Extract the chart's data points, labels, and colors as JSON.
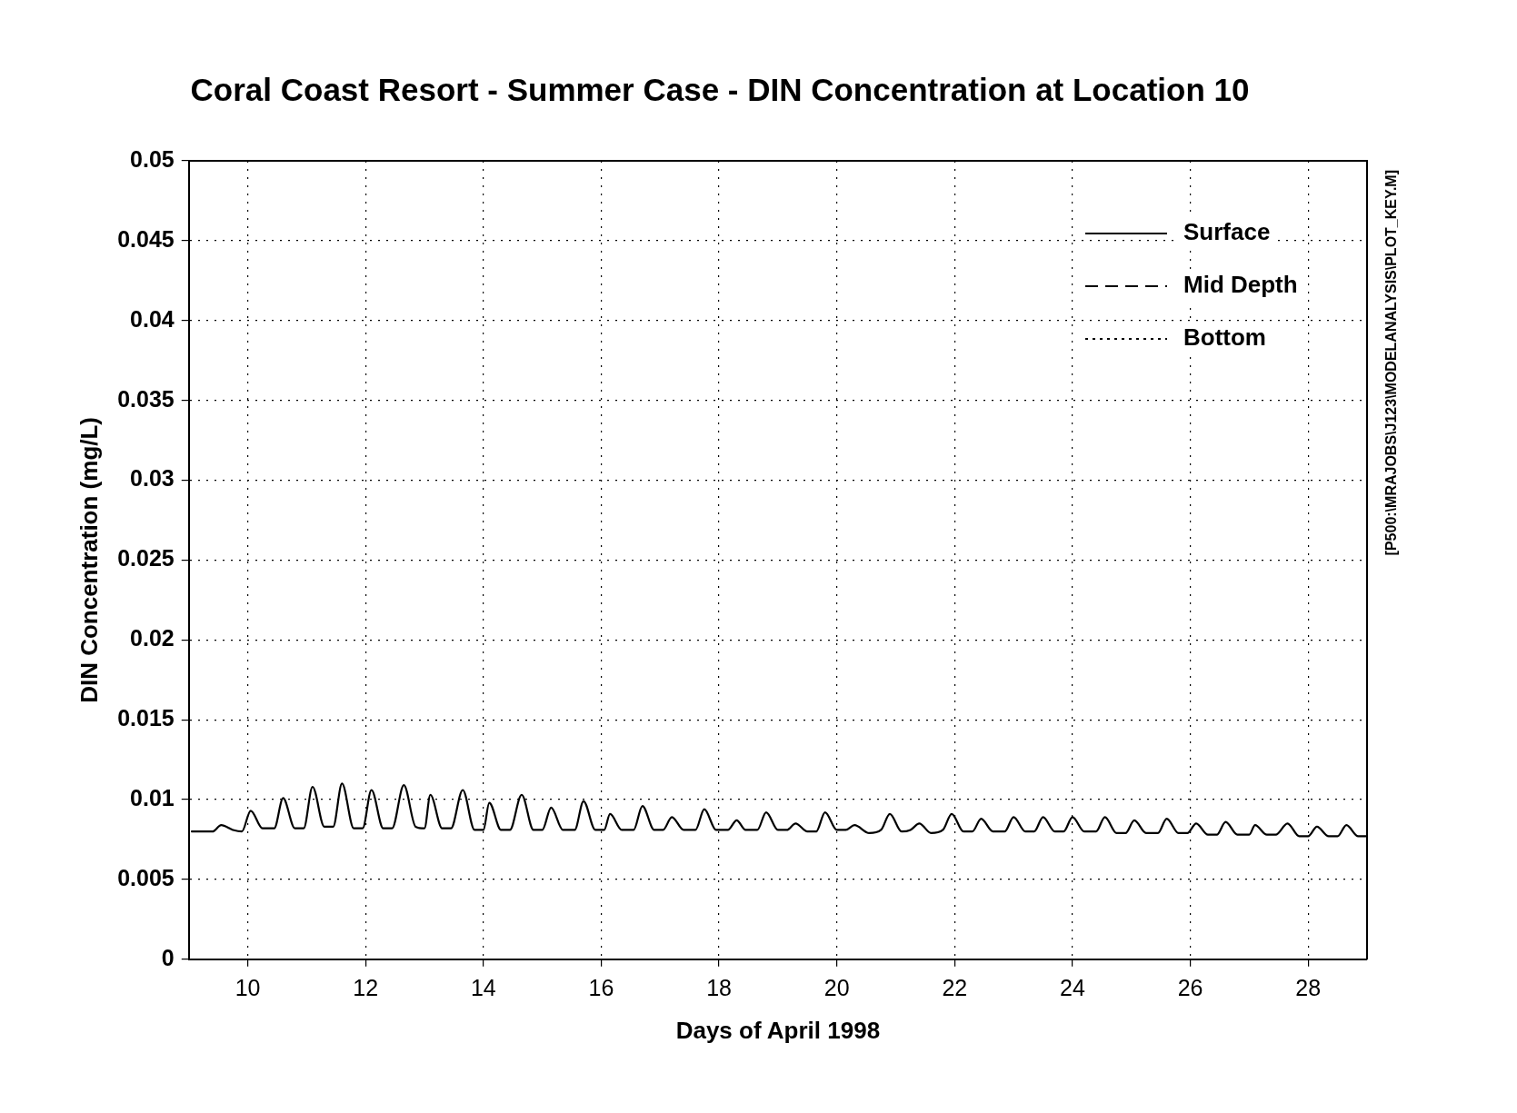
{
  "chart_data": {
    "type": "line",
    "title": "Coral Coast Resort - Summer Case - DIN Concentration at Location 10",
    "xlabel": "Days of April 1998",
    "ylabel": "DIN Concentration (mg/L)",
    "annotations": [
      "[P500:\\MRAJOBS\\J123\\MODELANALYSIS\\PLOT_KEY.M]"
    ],
    "x": [
      9.05,
      9.4,
      9.55,
      9.75,
      9.9,
      10.05,
      10.25,
      10.45,
      10.6,
      10.8,
      10.95,
      11.1,
      11.3,
      11.45,
      11.6,
      11.8,
      11.95,
      12.1,
      12.3,
      12.45,
      12.65,
      12.85,
      13.0,
      13.1,
      13.3,
      13.45,
      13.65,
      13.85,
      14.0,
      14.1,
      14.3,
      14.45,
      14.65,
      14.85,
      15.0,
      15.15,
      15.35,
      15.55,
      15.7,
      15.9,
      16.05,
      16.15,
      16.35,
      16.55,
      16.7,
      16.9,
      17.05,
      17.2,
      17.4,
      17.6,
      17.75,
      17.95,
      18.15,
      18.3,
      18.45,
      18.65,
      18.8,
      19.0,
      19.15,
      19.3,
      19.5,
      19.65,
      19.8,
      20.0,
      20.15,
      20.3,
      20.55,
      20.75,
      20.9,
      21.1,
      21.25,
      21.4,
      21.6,
      21.8,
      21.95,
      22.15,
      22.3,
      22.45,
      22.65,
      22.85,
      23.0,
      23.2,
      23.35,
      23.5,
      23.7,
      23.85,
      24.0,
      24.2,
      24.4,
      24.55,
      24.75,
      24.9,
      25.05,
      25.25,
      25.45,
      25.6,
      25.8,
      25.95,
      26.1,
      26.3,
      26.45,
      26.6,
      26.8,
      27.0,
      27.1,
      27.3,
      27.45,
      27.65,
      27.85,
      28.0,
      28.15,
      28.35,
      28.5,
      28.65,
      28.85,
      29.0
    ],
    "series": [
      {
        "name": "Surface",
        "color": "#000000",
        "line_style": "solid",
        "values": [
          0.008,
          0.008,
          0.0084,
          0.0081,
          0.008,
          0.0093,
          0.0082,
          0.0082,
          0.0101,
          0.0082,
          0.0082,
          0.0108,
          0.0083,
          0.0083,
          0.011,
          0.0082,
          0.0082,
          0.0106,
          0.0082,
          0.0082,
          0.0109,
          0.0083,
          0.0082,
          0.0103,
          0.0082,
          0.0082,
          0.0106,
          0.0081,
          0.0081,
          0.0098,
          0.0081,
          0.0081,
          0.0103,
          0.0081,
          0.0081,
          0.0095,
          0.0081,
          0.0081,
          0.0099,
          0.0081,
          0.0081,
          0.0091,
          0.0081,
          0.0081,
          0.0096,
          0.0081,
          0.0081,
          0.0089,
          0.0081,
          0.0081,
          0.0094,
          0.0081,
          0.0081,
          0.0087,
          0.0081,
          0.0081,
          0.0092,
          0.0081,
          0.0081,
          0.0085,
          0.008,
          0.008,
          0.0092,
          0.0081,
          0.0081,
          0.0084,
          0.0079,
          0.0081,
          0.0091,
          0.008,
          0.0081,
          0.0085,
          0.0079,
          0.0081,
          0.0091,
          0.008,
          0.008,
          0.0088,
          0.008,
          0.008,
          0.0089,
          0.008,
          0.008,
          0.0089,
          0.008,
          0.008,
          0.0089,
          0.008,
          0.008,
          0.0089,
          0.0079,
          0.0079,
          0.0087,
          0.0079,
          0.0079,
          0.0088,
          0.0079,
          0.0079,
          0.0085,
          0.0078,
          0.0078,
          0.0086,
          0.0078,
          0.0078,
          0.0084,
          0.0078,
          0.0078,
          0.0085,
          0.0077,
          0.0077,
          0.0083,
          0.0077,
          0.0077,
          0.0084,
          0.0077,
          0.0077
        ]
      },
      {
        "name": "Mid Depth",
        "color": "#000000",
        "line_style": "dashed",
        "values": [
          null,
          null,
          null,
          null,
          null,
          null,
          null,
          null,
          null,
          null,
          null,
          null,
          null,
          null,
          null,
          null,
          null,
          null,
          null,
          null,
          null,
          null,
          null,
          null,
          null,
          null,
          null,
          null,
          null,
          null,
          null,
          null,
          null,
          null,
          null,
          null,
          null,
          null,
          null,
          null,
          null,
          null,
          null,
          null,
          null,
          null,
          null,
          null,
          null,
          null,
          null,
          null,
          null,
          null,
          null,
          null,
          null,
          null,
          null,
          null,
          null,
          null,
          null,
          null,
          null,
          null,
          null,
          null,
          null,
          null,
          null,
          null,
          null,
          null,
          null,
          null,
          null,
          null,
          null,
          null,
          null,
          null,
          null,
          null,
          null,
          null,
          null,
          null,
          null,
          null,
          null,
          null,
          null,
          null,
          null,
          null,
          null,
          null,
          null,
          null,
          null,
          null,
          null,
          null,
          null,
          null,
          null,
          null,
          null,
          null,
          null,
          null,
          null,
          null,
          null,
          null
        ]
      },
      {
        "name": "Bottom",
        "color": "#000000",
        "line_style": "dotted",
        "values": [
          null,
          null,
          null,
          null,
          null,
          null,
          null,
          null,
          null,
          null,
          null,
          null,
          null,
          null,
          null,
          null,
          null,
          null,
          null,
          null,
          null,
          null,
          null,
          null,
          null,
          null,
          null,
          null,
          null,
          null,
          null,
          null,
          null,
          null,
          null,
          null,
          null,
          null,
          null,
          null,
          null,
          null,
          null,
          null,
          null,
          null,
          null,
          null,
          null,
          null,
          null,
          null,
          null,
          null,
          null,
          null,
          null,
          null,
          null,
          null,
          null,
          null,
          null,
          null,
          null,
          null,
          null,
          null,
          null,
          null,
          null,
          null,
          null,
          null,
          null,
          null,
          null,
          null,
          null,
          null,
          null,
          null,
          null,
          null,
          null,
          null,
          null,
          null,
          null,
          null,
          null,
          null,
          null,
          null,
          null,
          null,
          null,
          null,
          null,
          null,
          null,
          null,
          null,
          null,
          null,
          null,
          null,
          null,
          null,
          null,
          null,
          null,
          null,
          null,
          null,
          null
        ]
      }
    ],
    "xlim": [
      9,
      29
    ],
    "xticks": [
      10,
      12,
      14,
      16,
      18,
      20,
      22,
      24,
      26,
      28
    ],
    "ylim": [
      0,
      0.05
    ],
    "yticks": [
      0,
      0.005,
      0.01,
      0.015,
      0.02,
      0.025,
      0.03,
      0.035,
      0.04,
      0.045,
      0.05
    ],
    "grid": true,
    "legend": "top right",
    "marker": "none"
  }
}
